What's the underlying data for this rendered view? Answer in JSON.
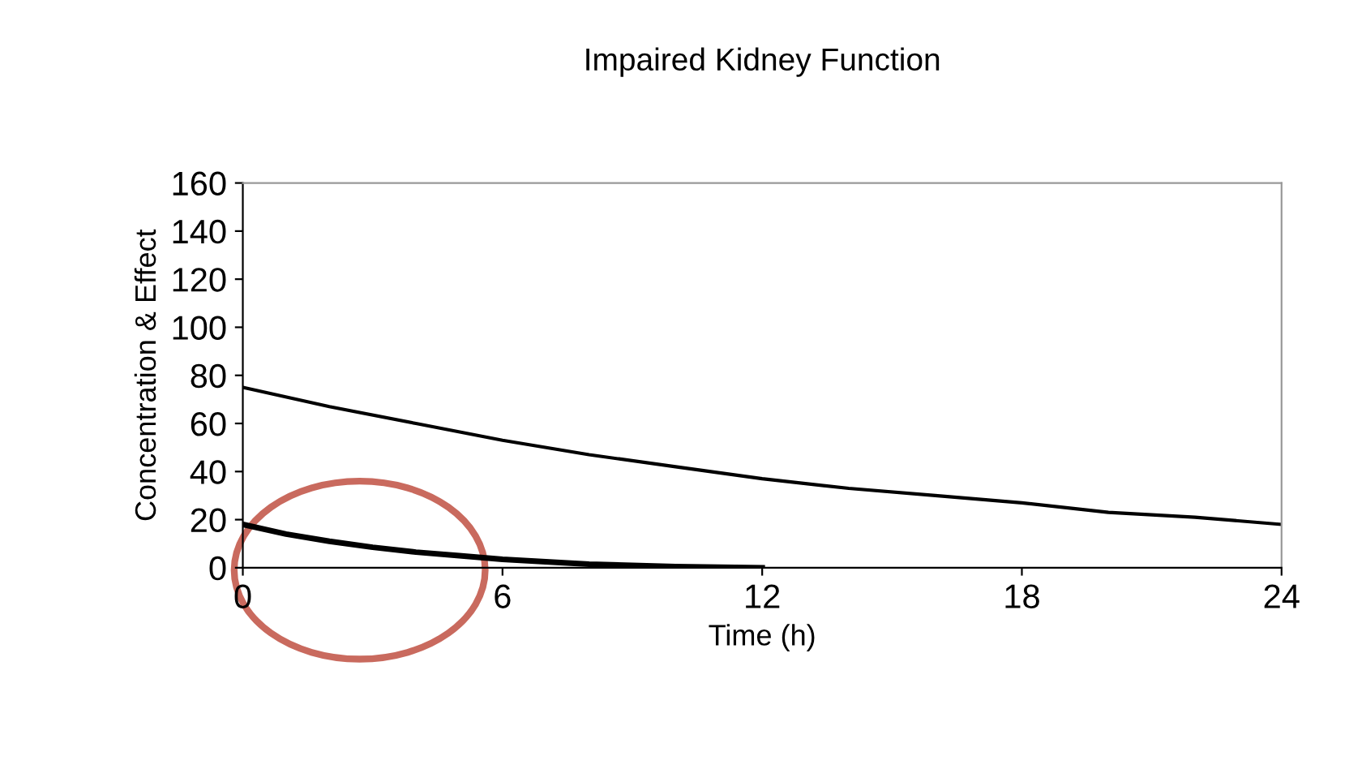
{
  "chart_data": {
    "type": "line",
    "title": "Impaired Kidney Function",
    "xlabel": "Time (h)",
    "ylabel": "Concentration & Effect",
    "series": [
      {
        "color": "#000000",
        "x": [
          0,
          2,
          4,
          6,
          8,
          10,
          12,
          14,
          16,
          18,
          20,
          22,
          24
        ],
        "values": [
          75,
          67,
          60,
          53,
          47,
          42,
          37,
          33,
          30,
          27,
          23,
          21,
          18
        ]
      },
      {
        "color": "#000000",
        "x": [
          0,
          1,
          2,
          3,
          4,
          5,
          6,
          7,
          8,
          10,
          12
        ],
        "values": [
          18,
          14,
          11,
          8.5,
          6.5,
          5,
          3.5,
          2.5,
          1.5,
          0.5,
          0
        ]
      }
    ],
    "xlim": [
      0,
      24
    ],
    "xticks": [
      0,
      6,
      12,
      18,
      24
    ],
    "ylim": [
      0,
      160
    ],
    "yticks": [
      0,
      20,
      40,
      60,
      80,
      100,
      120,
      140,
      160
    ],
    "grid": false
  }
}
